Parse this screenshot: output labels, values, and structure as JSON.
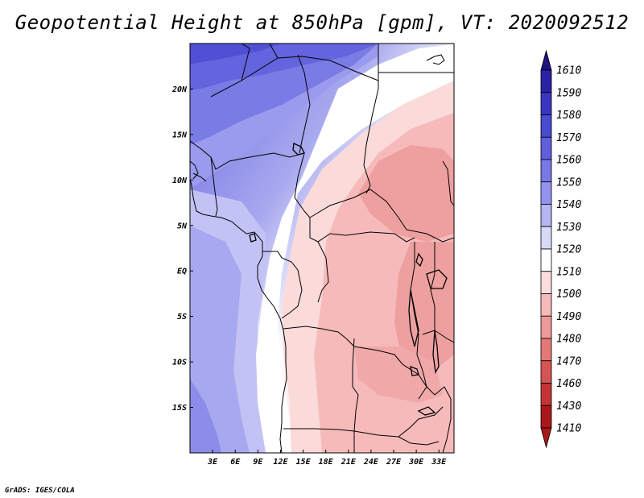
{
  "title": "Geopotential Height at 850hPa [gpm], VT: 2020092512",
  "footer": "GrADS: IGES/COLA",
  "map": {
    "variable": "Geopotential Height",
    "level": "850hPa",
    "units": "gpm",
    "valid_time": "2020092512",
    "lon_range": [
      0,
      35
    ],
    "lat_range": [
      -20,
      25
    ],
    "lat_ticks": [
      {
        "value": 20,
        "label": "20N"
      },
      {
        "value": 15,
        "label": "15N"
      },
      {
        "value": 10,
        "label": "10N"
      },
      {
        "value": 5,
        "label": "5N"
      },
      {
        "value": 0,
        "label": "EQ"
      },
      {
        "value": -5,
        "label": "5S"
      },
      {
        "value": -10,
        "label": "10S"
      },
      {
        "value": -15,
        "label": "15S"
      }
    ],
    "lon_ticks": [
      {
        "value": 3,
        "label": "3E"
      },
      {
        "value": 6,
        "label": "6E"
      },
      {
        "value": 9,
        "label": "9E"
      },
      {
        "value": 12,
        "label": "12E"
      },
      {
        "value": 15,
        "label": "15E"
      },
      {
        "value": 18,
        "label": "18E"
      },
      {
        "value": 21,
        "label": "21E"
      },
      {
        "value": 24,
        "label": "24E"
      },
      {
        "value": 27,
        "label": "27E"
      },
      {
        "value": 30,
        "label": "30E"
      },
      {
        "value": 33,
        "label": "33E"
      }
    ]
  },
  "colorbar": {
    "levels": [
      {
        "label": "1610",
        "color": "#1c1280"
      },
      {
        "label": "1590",
        "color": "#2a22a6"
      },
      {
        "label": "1580",
        "color": "#3a36c2"
      },
      {
        "label": "1570",
        "color": "#4a4ad2"
      },
      {
        "label": "1560",
        "color": "#5f5fdc"
      },
      {
        "label": "1550",
        "color": "#7878e6"
      },
      {
        "label": "1540",
        "color": "#9494ee"
      },
      {
        "label": "1530",
        "color": "#b5b5f3"
      },
      {
        "label": "1520",
        "color": "#d8d8f8"
      },
      {
        "label": "1510",
        "color": "#ffffff"
      },
      {
        "label": "1500",
        "color": "#fcdcdc"
      },
      {
        "label": "1490",
        "color": "#f6baba"
      },
      {
        "label": "1480",
        "color": "#ee9a9a"
      },
      {
        "label": "1470",
        "color": "#e27878"
      },
      {
        "label": "1460",
        "color": "#d65454"
      },
      {
        "label": "1430",
        "color": "#c43434"
      },
      {
        "label": "1410",
        "color": "#a81818"
      }
    ],
    "end_top_color": "#1c1280",
    "end_bottom_color": "#a81818"
  }
}
